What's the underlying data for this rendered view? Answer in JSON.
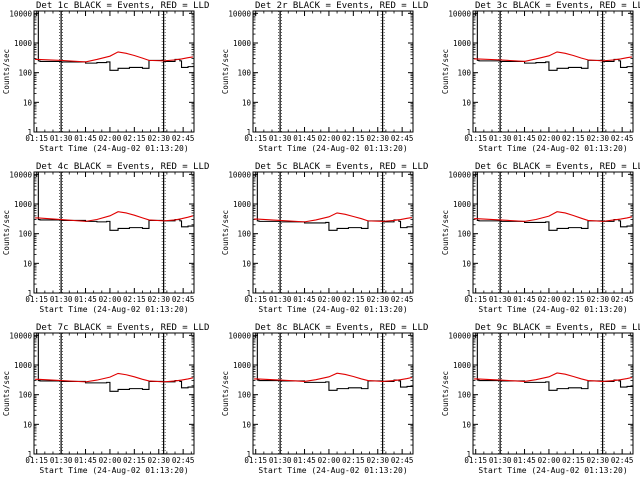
{
  "chart_data": [
    {
      "type": "line",
      "title": "Det 1c BLACK = Events, RED = LLD",
      "xlabel": "Start Time (24-Aug-02 01:13:20)",
      "ylabel": "Counts/sec",
      "yscale": "log",
      "ylim": [
        1,
        12000
      ],
      "xlim": [
        "01:13:20",
        "02:51:40"
      ],
      "xticks": [
        "01:15",
        "01:30",
        "01:45",
        "02:00",
        "02:15",
        "02:30",
        "02:45"
      ],
      "yticks": [
        "1",
        "10",
        "100",
        "1000",
        "10000"
      ],
      "markers": [
        "01:30",
        "02:33"
      ],
      "series": [
        {
          "name": "Events",
          "color": "#000000",
          "x": [
            "01:14",
            "01:16",
            "01:17",
            "01:30",
            "01:45",
            "01:52",
            "01:58",
            "02:00",
            "02:05",
            "02:12",
            "02:20",
            "02:24",
            "02:33",
            "02:40",
            "02:43",
            "02:44",
            "02:45",
            "02:48",
            "02:51"
          ],
          "y": [
            12000,
            250,
            240,
            230,
            210,
            220,
            230,
            120,
            140,
            150,
            140,
            260,
            240,
            280,
            250,
            150,
            150,
            160,
            170
          ]
        },
        {
          "name": "LLD",
          "color": "#e00000",
          "x": [
            "01:14",
            "01:16",
            "01:30",
            "01:45",
            "01:52",
            "02:00",
            "02:05",
            "02:10",
            "02:15",
            "02:20",
            "02:24",
            "02:33",
            "02:40",
            "02:44",
            "02:48",
            "02:51"
          ],
          "y": [
            280,
            280,
            260,
            230,
            280,
            360,
            500,
            450,
            380,
            310,
            260,
            250,
            270,
            290,
            320,
            340
          ]
        }
      ]
    },
    {
      "type": "line",
      "title": "Det 2r BLACK = Events, RED = LLD",
      "xlabel": "Start Time (24-Aug-02 01:13:20)",
      "ylabel": "Counts/sec",
      "yscale": "log",
      "ylim": [
        1,
        12000
      ],
      "xlim": [
        "01:13:20",
        "02:51:40"
      ],
      "xticks": [
        "01:15",
        "01:30",
        "01:45",
        "02:00",
        "02:15",
        "02:30",
        "02:45"
      ],
      "yticks": [
        "1",
        "10",
        "100",
        "1000",
        "10000"
      ],
      "markers": [
        "01:30",
        "02:33"
      ],
      "series": [
        {
          "name": "Events",
          "color": "#000000",
          "x": [],
          "y": []
        },
        {
          "name": "LLD",
          "color": "#e00000",
          "x": [],
          "y": []
        }
      ]
    },
    {
      "type": "line",
      "title": "Det 3c BLACK = Events, RED = LLD",
      "xlabel": "Start Time (24-Aug-02 01:13:20)",
      "ylabel": "Counts/sec",
      "yscale": "log",
      "ylim": [
        1,
        12000
      ],
      "xlim": [
        "01:13:20",
        "02:51:40"
      ],
      "xticks": [
        "01:15",
        "01:30",
        "01:45",
        "02:00",
        "02:15",
        "02:30",
        "02:45"
      ],
      "yticks": [
        "1",
        "10",
        "100",
        "1000",
        "10000"
      ],
      "markers": [
        "01:30",
        "02:33"
      ],
      "series": [
        {
          "name": "Events",
          "color": "#000000",
          "x": [
            "01:14",
            "01:16",
            "01:17",
            "01:30",
            "01:45",
            "01:52",
            "01:58",
            "02:00",
            "02:05",
            "02:12",
            "02:20",
            "02:24",
            "02:33",
            "02:40",
            "02:43",
            "02:44",
            "02:45",
            "02:48",
            "02:51"
          ],
          "y": [
            12000,
            260,
            250,
            240,
            210,
            220,
            230,
            120,
            140,
            150,
            140,
            260,
            240,
            280,
            250,
            150,
            150,
            160,
            170
          ]
        },
        {
          "name": "LLD",
          "color": "#e00000",
          "x": [
            "01:14",
            "01:16",
            "01:30",
            "01:45",
            "01:52",
            "02:00",
            "02:05",
            "02:10",
            "02:15",
            "02:20",
            "02:24",
            "02:33",
            "02:40",
            "02:44",
            "02:48",
            "02:51"
          ],
          "y": [
            290,
            290,
            270,
            240,
            290,
            370,
            500,
            450,
            380,
            310,
            270,
            250,
            270,
            290,
            320,
            340
          ]
        }
      ]
    },
    {
      "type": "line",
      "title": "Det 4c BLACK = Events, RED = LLD",
      "xlabel": "Start Time (24-Aug-02 01:13:20)",
      "ylabel": "Counts/sec",
      "yscale": "log",
      "ylim": [
        1,
        12000
      ],
      "xlim": [
        "01:13:20",
        "02:51:40"
      ],
      "xticks": [
        "01:15",
        "01:30",
        "01:45",
        "02:00",
        "02:15",
        "02:30",
        "02:45"
      ],
      "yticks": [
        "1",
        "10",
        "100",
        "1000",
        "10000"
      ],
      "markers": [
        "01:30",
        "02:33"
      ],
      "series": [
        {
          "name": "Events",
          "color": "#000000",
          "x": [
            "01:14",
            "01:16",
            "01:17",
            "01:30",
            "01:45",
            "01:52",
            "01:58",
            "02:00",
            "02:05",
            "02:12",
            "02:20",
            "02:24",
            "02:33",
            "02:40",
            "02:43",
            "02:44",
            "02:45",
            "02:48",
            "02:51"
          ],
          "y": [
            12000,
            300,
            290,
            280,
            260,
            250,
            260,
            130,
            150,
            160,
            150,
            280,
            270,
            300,
            270,
            170,
            170,
            180,
            190
          ]
        },
        {
          "name": "LLD",
          "color": "#e00000",
          "x": [
            "01:14",
            "01:16",
            "01:30",
            "01:45",
            "01:52",
            "02:00",
            "02:05",
            "02:10",
            "02:15",
            "02:20",
            "02:24",
            "02:33",
            "02:40",
            "02:44",
            "02:48",
            "02:51"
          ],
          "y": [
            340,
            340,
            300,
            260,
            300,
            400,
            550,
            500,
            420,
            340,
            290,
            270,
            290,
            320,
            360,
            400
          ]
        }
      ]
    },
    {
      "type": "line",
      "title": "Det 5c BLACK = Events, RED = LLD",
      "xlabel": "Start Time (24-Aug-02 01:13:20)",
      "ylabel": "Counts/sec",
      "yscale": "log",
      "ylim": [
        1,
        12000
      ],
      "xlim": [
        "01:13:20",
        "02:51:40"
      ],
      "xticks": [
        "01:15",
        "01:30",
        "01:45",
        "02:00",
        "02:15",
        "02:30",
        "02:45"
      ],
      "yticks": [
        "1",
        "10",
        "100",
        "1000",
        "10000"
      ],
      "markers": [
        "01:30",
        "02:33"
      ],
      "series": [
        {
          "name": "Events",
          "color": "#000000",
          "x": [
            "01:14",
            "01:16",
            "01:17",
            "01:30",
            "01:45",
            "01:52",
            "01:58",
            "02:00",
            "02:05",
            "02:12",
            "02:20",
            "02:24",
            "02:33",
            "02:40",
            "02:43",
            "02:44",
            "02:45",
            "02:48",
            "02:51"
          ],
          "y": [
            12000,
            270,
            260,
            250,
            230,
            230,
            240,
            130,
            150,
            160,
            150,
            270,
            250,
            290,
            260,
            160,
            160,
            170,
            180
          ]
        },
        {
          "name": "LLD",
          "color": "#e00000",
          "x": [
            "01:14",
            "01:16",
            "01:30",
            "01:45",
            "01:52",
            "02:00",
            "02:05",
            "02:10",
            "02:15",
            "02:20",
            "02:24",
            "02:33",
            "02:40",
            "02:44",
            "02:48",
            "02:51"
          ],
          "y": [
            310,
            310,
            280,
            250,
            290,
            370,
            500,
            450,
            380,
            320,
            270,
            260,
            280,
            300,
            330,
            350
          ]
        }
      ]
    },
    {
      "type": "line",
      "title": "Det 6c BLACK = Events, RED = LLD",
      "xlabel": "Start Time (24-Aug-02 01:13:20)",
      "ylabel": "Counts/sec",
      "yscale": "log",
      "ylim": [
        1,
        12000
      ],
      "xlim": [
        "01:13:20",
        "02:51:40"
      ],
      "xticks": [
        "01:15",
        "01:30",
        "01:45",
        "02:00",
        "02:15",
        "02:30",
        "02:45"
      ],
      "yticks": [
        "1",
        "10",
        "100",
        "1000",
        "10000"
      ],
      "markers": [
        "01:30",
        "02:33"
      ],
      "series": [
        {
          "name": "Events",
          "color": "#000000",
          "x": [
            "01:14",
            "01:16",
            "01:17",
            "01:30",
            "01:45",
            "01:52",
            "01:58",
            "02:00",
            "02:05",
            "02:12",
            "02:20",
            "02:24",
            "02:33",
            "02:40",
            "02:43",
            "02:44",
            "02:45",
            "02:48",
            "02:51"
          ],
          "y": [
            12000,
            280,
            270,
            260,
            240,
            240,
            250,
            130,
            150,
            160,
            150,
            270,
            260,
            300,
            270,
            170,
            170,
            180,
            190
          ]
        },
        {
          "name": "LLD",
          "color": "#e00000",
          "x": [
            "01:14",
            "01:16",
            "01:30",
            "01:45",
            "01:52",
            "02:00",
            "02:05",
            "02:10",
            "02:15",
            "02:20",
            "02:24",
            "02:33",
            "02:40",
            "02:44",
            "02:48",
            "02:51"
          ],
          "y": [
            320,
            320,
            290,
            260,
            300,
            390,
            550,
            500,
            410,
            330,
            280,
            260,
            290,
            310,
            340,
            370
          ]
        }
      ]
    },
    {
      "type": "line",
      "title": "Det 7c BLACK = Events, RED = LLD",
      "xlabel": "Start Time (24-Aug-02 01:13:20)",
      "ylabel": "Counts/sec",
      "yscale": "log",
      "ylim": [
        1,
        12000
      ],
      "xlim": [
        "01:13:20",
        "02:51:40"
      ],
      "xticks": [
        "01:15",
        "01:30",
        "01:45",
        "02:00",
        "02:15",
        "02:30",
        "02:45"
      ],
      "yticks": [
        "1",
        "10",
        "100",
        "1000",
        "10000"
      ],
      "markers": [
        "01:30",
        "02:33"
      ],
      "series": [
        {
          "name": "Events",
          "color": "#000000",
          "x": [
            "01:14",
            "01:16",
            "01:17",
            "01:30",
            "01:45",
            "01:52",
            "01:58",
            "02:00",
            "02:05",
            "02:12",
            "02:20",
            "02:24",
            "02:33",
            "02:40",
            "02:43",
            "02:44",
            "02:45",
            "02:48",
            "02:51"
          ],
          "y": [
            12000,
            300,
            290,
            280,
            250,
            250,
            260,
            130,
            150,
            160,
            150,
            280,
            270,
            300,
            280,
            170,
            170,
            180,
            190
          ]
        },
        {
          "name": "LLD",
          "color": "#e00000",
          "x": [
            "01:14",
            "01:16",
            "01:30",
            "01:45",
            "01:52",
            "02:00",
            "02:05",
            "02:10",
            "02:15",
            "02:20",
            "02:24",
            "02:33",
            "02:40",
            "02:44",
            "02:48",
            "02:51"
          ],
          "y": [
            330,
            330,
            300,
            270,
            310,
            390,
            520,
            470,
            400,
            330,
            290,
            270,
            290,
            310,
            340,
            370
          ]
        }
      ]
    },
    {
      "type": "line",
      "title": "Det 8c BLACK = Events, RED = LLD",
      "xlabel": "Start Time (24-Aug-02 01:13:20)",
      "ylabel": "Counts/sec",
      "yscale": "log",
      "ylim": [
        1,
        12000
      ],
      "xlim": [
        "01:13:20",
        "02:51:40"
      ],
      "xticks": [
        "01:15",
        "01:30",
        "01:45",
        "02:00",
        "02:15",
        "02:30",
        "02:45"
      ],
      "yticks": [
        "1",
        "10",
        "100",
        "1000",
        "10000"
      ],
      "markers": [
        "01:30",
        "02:33"
      ],
      "series": [
        {
          "name": "Events",
          "color": "#000000",
          "x": [
            "01:14",
            "01:16",
            "01:17",
            "01:30",
            "01:45",
            "01:52",
            "01:58",
            "02:00",
            "02:05",
            "02:12",
            "02:20",
            "02:24",
            "02:33",
            "02:40",
            "02:43",
            "02:44",
            "02:45",
            "02:48",
            "02:51"
          ],
          "y": [
            12000,
            310,
            300,
            290,
            260,
            260,
            270,
            140,
            160,
            170,
            160,
            290,
            280,
            310,
            290,
            180,
            180,
            190,
            200
          ]
        },
        {
          "name": "LLD",
          "color": "#e00000",
          "x": [
            "01:14",
            "01:16",
            "01:30",
            "01:45",
            "01:52",
            "02:00",
            "02:05",
            "02:10",
            "02:15",
            "02:20",
            "02:24",
            "02:33",
            "02:40",
            "02:44",
            "02:48",
            "02:51"
          ],
          "y": [
            340,
            340,
            310,
            280,
            320,
            400,
            530,
            480,
            410,
            340,
            300,
            280,
            300,
            320,
            350,
            380
          ]
        }
      ]
    },
    {
      "type": "line",
      "title": "Det 9c BLACK = Events, RED = LLD",
      "xlabel": "Start Time (24-Aug-02 01:13:20)",
      "ylabel": "Counts/sec",
      "yscale": "log",
      "ylim": [
        1,
        12000
      ],
      "xlim": [
        "01:13:20",
        "02:51:40"
      ],
      "xticks": [
        "01:15",
        "01:30",
        "01:45",
        "02:00",
        "02:15",
        "02:30",
        "02:45"
      ],
      "yticks": [
        "1",
        "10",
        "100",
        "1000",
        "10000"
      ],
      "markers": [
        "01:30",
        "02:33"
      ],
      "series": [
        {
          "name": "Events",
          "color": "#000000",
          "x": [
            "01:14",
            "01:16",
            "01:17",
            "01:30",
            "01:45",
            "01:52",
            "01:58",
            "02:00",
            "02:05",
            "02:12",
            "02:20",
            "02:24",
            "02:33",
            "02:40",
            "02:43",
            "02:44",
            "02:45",
            "02:48",
            "02:51"
          ],
          "y": [
            12000,
            310,
            300,
            290,
            260,
            260,
            270,
            140,
            160,
            170,
            160,
            290,
            280,
            310,
            290,
            180,
            180,
            190,
            200
          ]
        },
        {
          "name": "LLD",
          "color": "#e00000",
          "x": [
            "01:14",
            "01:16",
            "01:30",
            "01:45",
            "01:52",
            "02:00",
            "02:05",
            "02:10",
            "02:15",
            "02:20",
            "02:24",
            "02:33",
            "02:40",
            "02:44",
            "02:48",
            "02:51"
          ],
          "y": [
            340,
            340,
            310,
            280,
            320,
            400,
            540,
            490,
            410,
            340,
            300,
            280,
            300,
            320,
            350,
            380
          ]
        }
      ]
    }
  ]
}
